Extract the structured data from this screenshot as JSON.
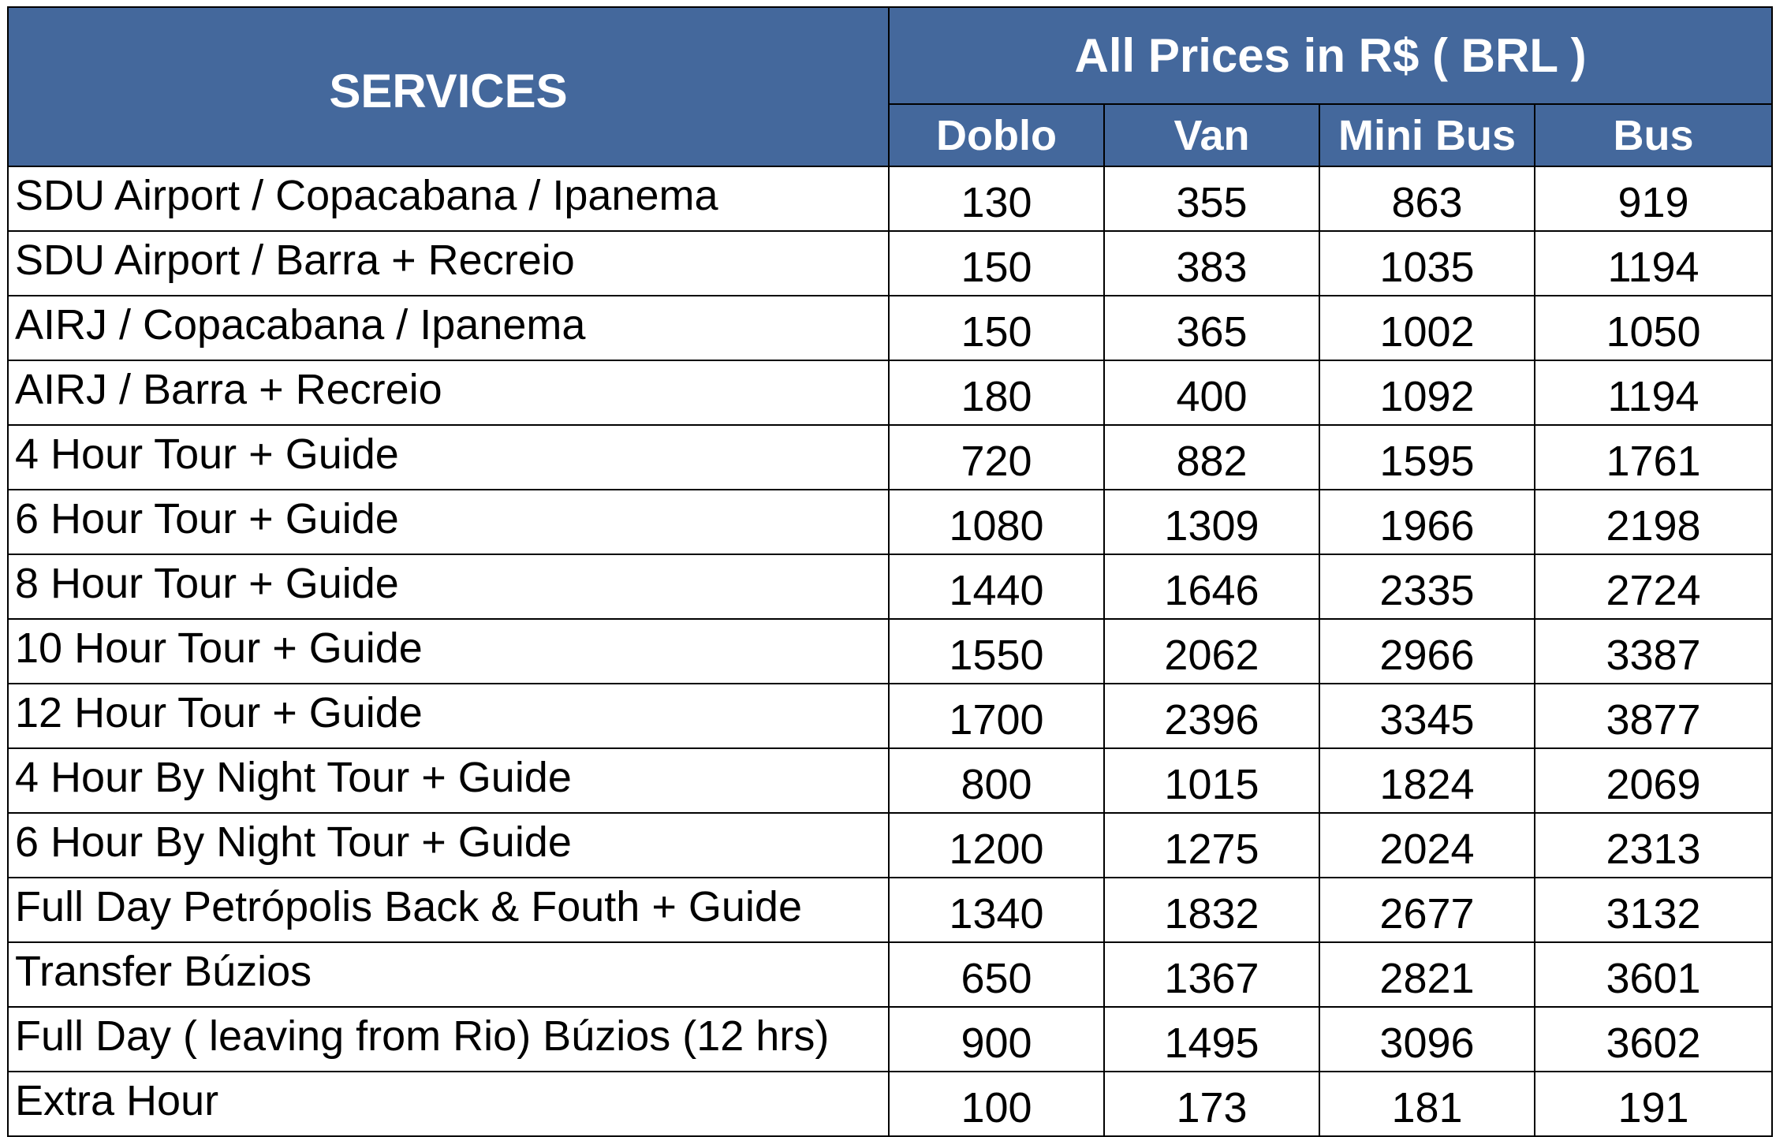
{
  "header": {
    "services_label": "SERVICES",
    "prices_label": "All Prices in R$ ( BRL )",
    "vehicles": [
      "Doblo",
      "Van",
      "Mini Bus",
      "Bus"
    ]
  },
  "colors": {
    "header_bg": "#44689c",
    "header_text": "#ffffff",
    "grid": "#000000"
  },
  "rows": [
    {
      "service": "SDU Airport / Copacabana / Ipanema",
      "prices": [
        "130",
        "355",
        "863",
        "919"
      ]
    },
    {
      "service": "SDU Airport / Barra + Recreio",
      "prices": [
        "150",
        "383",
        "1035",
        "1194"
      ]
    },
    {
      "service": "AIRJ / Copacabana / Ipanema",
      "prices": [
        "150",
        "365",
        "1002",
        "1050"
      ]
    },
    {
      "service": "AIRJ / Barra + Recreio",
      "prices": [
        "180",
        "400",
        "1092",
        "1194"
      ]
    },
    {
      "service": "4 Hour Tour + Guide",
      "prices": [
        "720",
        "882",
        "1595",
        "1761"
      ]
    },
    {
      "service": "6 Hour Tour + Guide",
      "prices": [
        "1080",
        "1309",
        "1966",
        "2198"
      ]
    },
    {
      "service": "8 Hour Tour + Guide",
      "prices": [
        "1440",
        "1646",
        "2335",
        "2724"
      ]
    },
    {
      "service": "10 Hour Tour + Guide",
      "prices": [
        "1550",
        "2062",
        "2966",
        "3387"
      ]
    },
    {
      "service": "12 Hour Tour + Guide",
      "prices": [
        "1700",
        "2396",
        "3345",
        "3877"
      ]
    },
    {
      "service": "4 Hour By Night Tour + Guide",
      "prices": [
        "800",
        "1015",
        "1824",
        "2069"
      ]
    },
    {
      "service": "6 Hour By Night Tour + Guide",
      "prices": [
        "1200",
        "1275",
        "2024",
        "2313"
      ]
    },
    {
      "service": "Full Day Petrópolis Back & Fouth + Guide",
      "prices": [
        "1340",
        "1832",
        "2677",
        "3132"
      ]
    },
    {
      "service": "Transfer Búzios",
      "prices": [
        "650",
        "1367",
        "2821",
        "3601"
      ]
    },
    {
      "service": "Full Day ( leaving from Rio) Búzios (12 hrs)",
      "prices": [
        "900",
        "1495",
        "3096",
        "3602"
      ]
    },
    {
      "service": "Extra Hour",
      "prices": [
        "100",
        "173",
        "181",
        "191"
      ]
    }
  ]
}
